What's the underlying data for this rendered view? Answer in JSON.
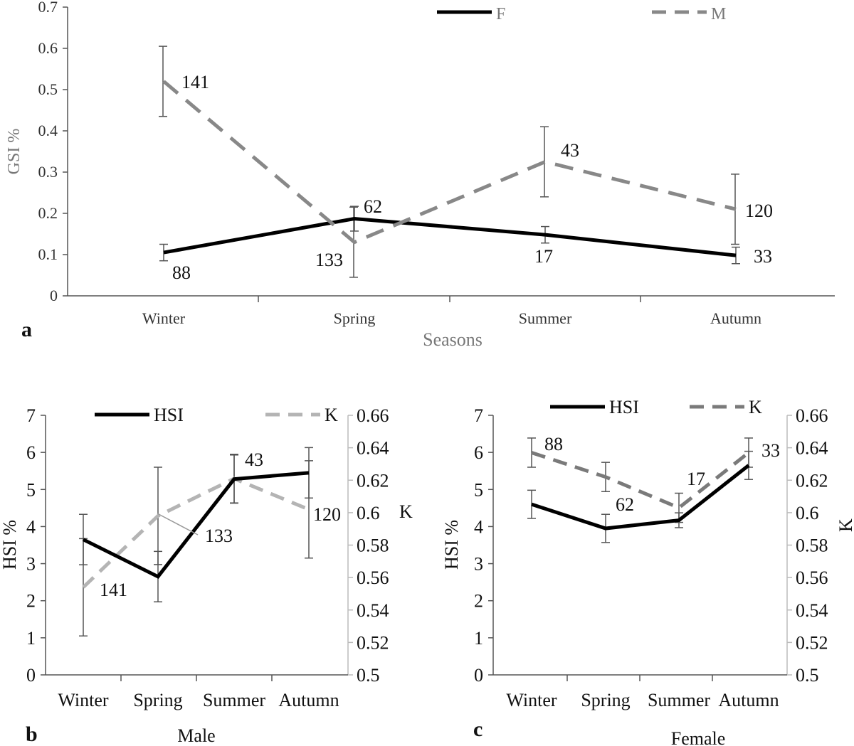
{
  "colors": {
    "female": "#000000",
    "male": "#888888",
    "hsi": "#000000",
    "k_male": "#b4b4b4",
    "k_female": "#7a7a7a",
    "axis": "#555555",
    "errorbar": "#555555"
  },
  "chart_data": [
    {
      "type": "line",
      "panel": "a",
      "xlabel": "Seasons",
      "ylabel": "GSI %",
      "categories": [
        "Winter",
        "Spring",
        "Summer",
        "Autumn"
      ],
      "ylim": [
        0,
        0.7
      ],
      "yticks": [
        "0",
        "0.1",
        "0.2",
        "0.3",
        "0.4",
        "0.5",
        "0.6",
        "0.7"
      ],
      "legend_position": "top-right",
      "series": [
        {
          "name": "F",
          "style": "solid",
          "values": [
            0.105,
            0.187,
            0.148,
            0.098
          ],
          "err": [
            0.02,
            0.03,
            0.02,
            0.02
          ],
          "n_labels": [
            "88",
            "62",
            "17",
            "33"
          ]
        },
        {
          "name": "M",
          "style": "dashed",
          "values": [
            0.52,
            0.13,
            0.325,
            0.21
          ],
          "err": [
            0.085,
            0.085,
            0.085,
            0.085
          ],
          "n_labels": [
            "141",
            "133",
            "43",
            "120"
          ]
        }
      ]
    },
    {
      "type": "line",
      "panel": "b",
      "title": "Male",
      "ylabel": "HSI %",
      "y2label": "K",
      "categories": [
        "Winter",
        "Spring",
        "Summer",
        "Autumn"
      ],
      "ylim": [
        0,
        7
      ],
      "y2lim": [
        0.5,
        0.66
      ],
      "yticks": [
        "0",
        "1",
        "2",
        "3",
        "4",
        "5",
        "6",
        "7"
      ],
      "y2ticks": [
        "0.5",
        "0.52",
        "0.54",
        "0.56",
        "0.58",
        "0.6",
        "0.62",
        "0.64",
        "0.66"
      ],
      "legend_position": "top",
      "series": [
        {
          "name": "HSI",
          "style": "solid",
          "axis": "left",
          "values": [
            3.65,
            2.65,
            5.28,
            5.45
          ],
          "err": [
            0.68,
            0.68,
            0.65,
            0.68
          ]
        },
        {
          "name": "K",
          "style": "dashed",
          "axis": "right",
          "values": [
            0.554,
            0.598,
            0.621,
            0.602
          ],
          "err": [
            0.03,
            0.03,
            0.015,
            0.03
          ],
          "n_labels": [
            "141",
            "133",
            "43",
            "120"
          ]
        }
      ]
    },
    {
      "type": "line",
      "panel": "c",
      "title": "Female",
      "ylabel": "HSI %",
      "y2label": "K",
      "categories": [
        "Winter",
        "Spring",
        "Summer",
        "Autumn"
      ],
      "ylim": [
        0,
        7
      ],
      "y2lim": [
        0.5,
        0.66
      ],
      "yticks": [
        "0",
        "1",
        "2",
        "3",
        "4",
        "5",
        "6",
        "7"
      ],
      "y2ticks": [
        "0.5",
        "0.52",
        "0.54",
        "0.56",
        "0.58",
        "0.6",
        "0.62",
        "0.64",
        "0.66"
      ],
      "legend_position": "top",
      "series": [
        {
          "name": "HSI",
          "style": "solid",
          "axis": "left",
          "values": [
            4.6,
            3.95,
            4.17,
            5.65
          ],
          "err": [
            0.38,
            0.38,
            0.2,
            0.38
          ]
        },
        {
          "name": "K",
          "style": "dashed",
          "axis": "right",
          "values": [
            0.637,
            0.622,
            0.603,
            0.637
          ],
          "err": [
            0.009,
            0.009,
            0.009,
            0.009
          ],
          "n_labels": [
            "88",
            "62",
            "17",
            "33"
          ]
        }
      ]
    }
  ]
}
